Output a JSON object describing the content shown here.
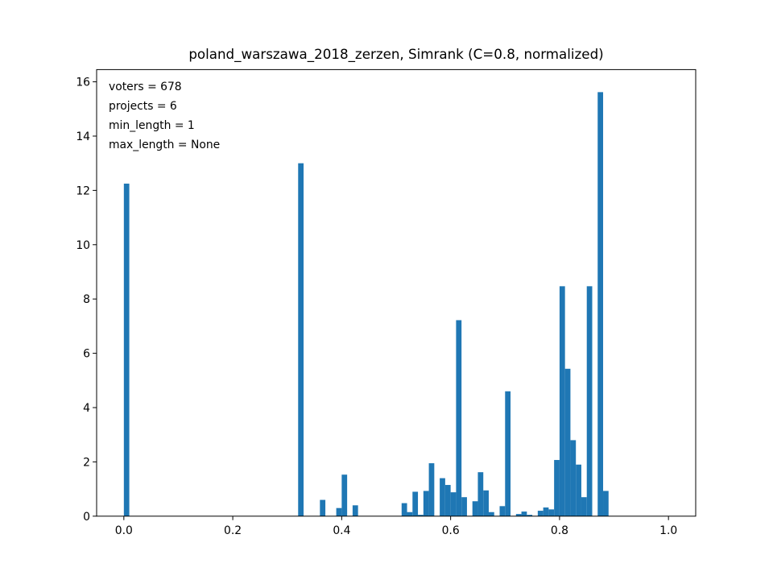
{
  "chart_data": {
    "type": "bar",
    "title": "poland_warszawa_2018_zerzen, Simrank (C=0.8, normalized)",
    "xlabel": "",
    "ylabel": "",
    "xlim": [
      -0.05,
      1.05
    ],
    "ylim": [
      0,
      16.45
    ],
    "xticks": [
      0.0,
      0.2,
      0.4,
      0.6,
      0.8,
      1.0
    ],
    "xtick_labels": [
      "0.0",
      "0.2",
      "0.4",
      "0.6",
      "0.8",
      "1.0"
    ],
    "yticks": [
      0,
      2,
      4,
      6,
      8,
      10,
      12,
      14,
      16
    ],
    "ytick_labels": [
      "0",
      "2",
      "4",
      "6",
      "8",
      "10",
      "12",
      "14",
      "16"
    ],
    "grid": false,
    "legend": "none",
    "color": "#1f77b4",
    "annotation_lines": [
      "voters = 678",
      "projects = 6",
      "min_length = 1",
      "max_length = None"
    ],
    "bin_width": 0.01,
    "bins": [
      {
        "x0": 0.0,
        "value": 12.25
      },
      {
        "x0": 0.32,
        "value": 13.0
      },
      {
        "x0": 0.36,
        "value": 0.6
      },
      {
        "x0": 0.39,
        "value": 0.3
      },
      {
        "x0": 0.4,
        "value": 1.53
      },
      {
        "x0": 0.42,
        "value": 0.4
      },
      {
        "x0": 0.51,
        "value": 0.48
      },
      {
        "x0": 0.52,
        "value": 0.15
      },
      {
        "x0": 0.53,
        "value": 0.9
      },
      {
        "x0": 0.54,
        "value": 0.05
      },
      {
        "x0": 0.55,
        "value": 0.93
      },
      {
        "x0": 0.56,
        "value": 1.95
      },
      {
        "x0": 0.58,
        "value": 1.4
      },
      {
        "x0": 0.59,
        "value": 1.15
      },
      {
        "x0": 0.6,
        "value": 0.88
      },
      {
        "x0": 0.61,
        "value": 7.22
      },
      {
        "x0": 0.62,
        "value": 0.7
      },
      {
        "x0": 0.64,
        "value": 0.55
      },
      {
        "x0": 0.65,
        "value": 1.62
      },
      {
        "x0": 0.66,
        "value": 0.95
      },
      {
        "x0": 0.67,
        "value": 0.15
      },
      {
        "x0": 0.69,
        "value": 0.37
      },
      {
        "x0": 0.7,
        "value": 4.6
      },
      {
        "x0": 0.72,
        "value": 0.08
      },
      {
        "x0": 0.73,
        "value": 0.17
      },
      {
        "x0": 0.74,
        "value": 0.05
      },
      {
        "x0": 0.76,
        "value": 0.2
      },
      {
        "x0": 0.77,
        "value": 0.32
      },
      {
        "x0": 0.78,
        "value": 0.25
      },
      {
        "x0": 0.79,
        "value": 2.07
      },
      {
        "x0": 0.8,
        "value": 8.47
      },
      {
        "x0": 0.81,
        "value": 5.43
      },
      {
        "x0": 0.82,
        "value": 2.8
      },
      {
        "x0": 0.83,
        "value": 1.9
      },
      {
        "x0": 0.84,
        "value": 0.7
      },
      {
        "x0": 0.85,
        "value": 8.47
      },
      {
        "x0": 0.87,
        "value": 15.62
      },
      {
        "x0": 0.88,
        "value": 0.93
      }
    ]
  }
}
